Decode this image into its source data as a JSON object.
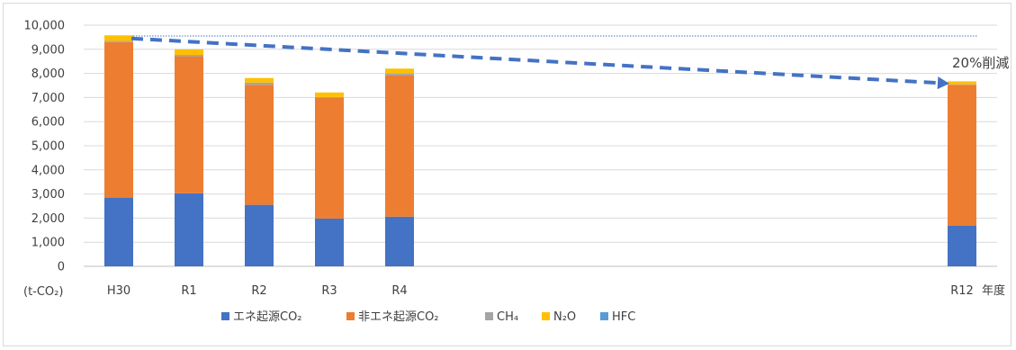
{
  "chart_data": {
    "type": "bar",
    "stacked": true,
    "categories": [
      "H30",
      "R1",
      "R2",
      "R3",
      "R4",
      "R12"
    ],
    "series": [
      {
        "name": "エネ起源CO₂",
        "color": "#4472C4",
        "values": [
          2850,
          3030,
          2550,
          1980,
          2060,
          1680
        ]
      },
      {
        "name": "非エネ起源CO₂",
        "color": "#ED7D31",
        "values": [
          6450,
          5680,
          4980,
          5020,
          5850,
          5850
        ]
      },
      {
        "name": "CH₄",
        "color": "#A5A5A5",
        "values": [
          50,
          60,
          90,
          20,
          90,
          20
        ]
      },
      {
        "name": "N₂O",
        "color": "#FFC000",
        "values": [
          230,
          230,
          190,
          190,
          200,
          120
        ]
      },
      {
        "name": "HFC",
        "color": "#5B9BD5",
        "values": [
          0,
          0,
          0,
          0,
          0,
          0
        ]
      }
    ],
    "ylim": [
      0,
      10000
    ],
    "yticks": [
      0,
      1000,
      2000,
      3000,
      4000,
      5000,
      6000,
      7000,
      8000,
      9000,
      10000
    ],
    "ytick_labels": [
      "0",
      "1,000",
      "2,000",
      "3,000",
      "4,000",
      "5,000",
      "6,000",
      "7,000",
      "8,000",
      "9,000",
      "10,000"
    ],
    "ylabel": "(t-CO₂)",
    "xlabel": "年度",
    "grid": true,
    "legend_position": "bottom",
    "reference_line": {
      "value": 9550,
      "from": "H30",
      "to": "R12",
      "color": "#4472C4",
      "style": "dotted"
    },
    "trend_arrow": {
      "from_category": "H30",
      "from_value": 9450,
      "to_category": "R12",
      "to_value": 7600,
      "color": "#4472C4",
      "style": "dashed"
    },
    "annotation": {
      "text": "20%削減",
      "anchor_category": "R12"
    }
  }
}
